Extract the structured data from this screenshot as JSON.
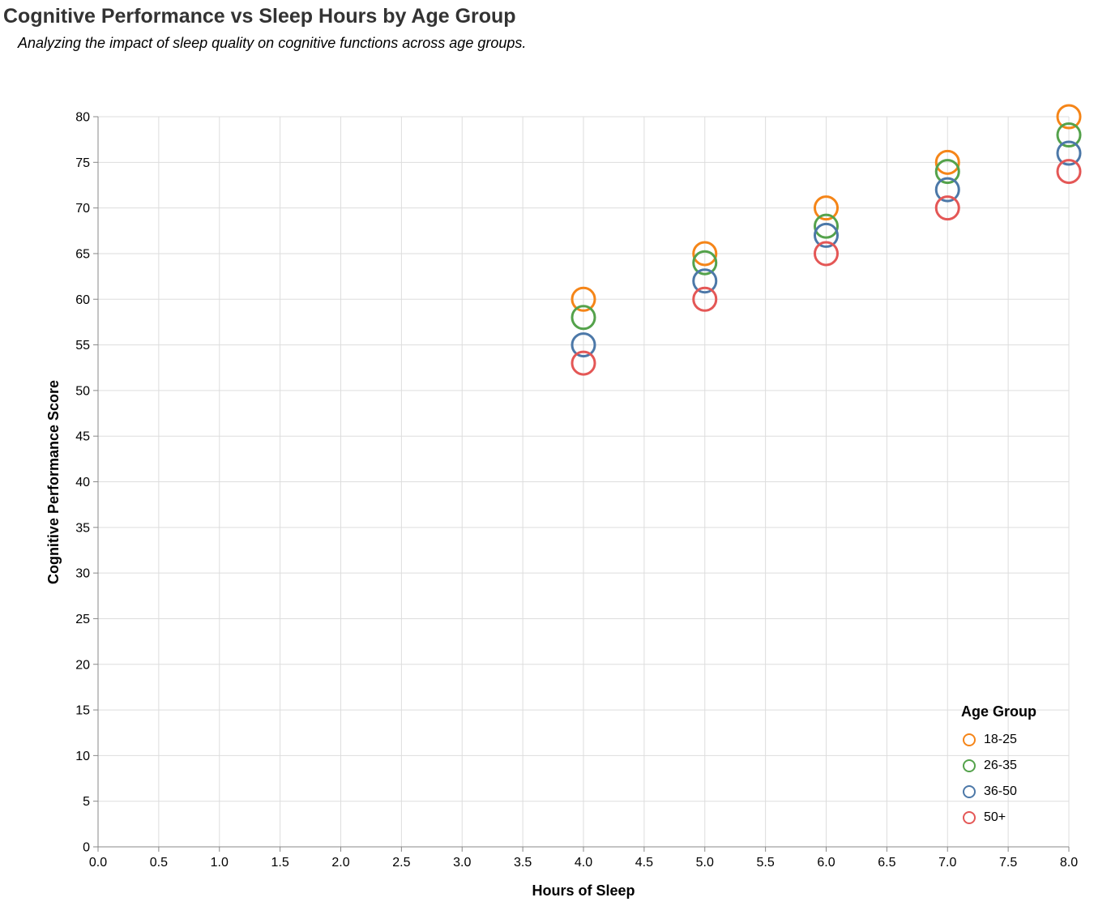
{
  "chart_data": {
    "type": "scatter",
    "title": "Cognitive Performance vs Sleep Hours by Age Group",
    "subtitle": "Analyzing the impact of sleep quality on cognitive functions across age groups.",
    "xlabel": "Hours of Sleep",
    "ylabel": "Cognitive Performance Score",
    "xlim": [
      0,
      8
    ],
    "ylim": [
      0,
      80
    ],
    "x_ticks": [
      "0.0",
      "0.5",
      "1.0",
      "1.5",
      "2.0",
      "2.5",
      "3.0",
      "3.5",
      "4.0",
      "4.5",
      "5.0",
      "5.5",
      "6.0",
      "6.5",
      "7.0",
      "7.5",
      "8.0"
    ],
    "y_ticks": [
      "0",
      "5",
      "10",
      "15",
      "20",
      "25",
      "30",
      "35",
      "40",
      "45",
      "50",
      "55",
      "60",
      "65",
      "70",
      "75",
      "80"
    ],
    "grid": true,
    "legend_title": "Age Group",
    "legend_position": "bottom-right",
    "series": [
      {
        "name": "18-25",
        "color": "#f58518",
        "points": [
          [
            4,
            60
          ],
          [
            5,
            65
          ],
          [
            6,
            70
          ],
          [
            7,
            75
          ],
          [
            8,
            80
          ]
        ]
      },
      {
        "name": "26-35",
        "color": "#54a24b",
        "points": [
          [
            4,
            58
          ],
          [
            5,
            64
          ],
          [
            6,
            68
          ],
          [
            7,
            74
          ],
          [
            8,
            78
          ]
        ]
      },
      {
        "name": "36-50",
        "color": "#4c78a8",
        "points": [
          [
            4,
            55
          ],
          [
            5,
            62
          ],
          [
            6,
            67
          ],
          [
            7,
            72
          ],
          [
            8,
            76
          ]
        ]
      },
      {
        "name": "50+",
        "color": "#e45756",
        "points": [
          [
            4,
            53
          ],
          [
            5,
            60
          ],
          [
            6,
            65
          ],
          [
            7,
            70
          ],
          [
            8,
            74
          ]
        ]
      }
    ]
  }
}
